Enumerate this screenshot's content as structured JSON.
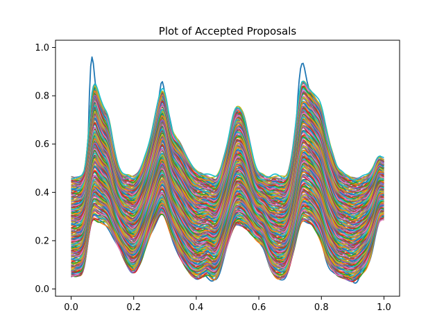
{
  "chart_data": {
    "type": "line",
    "title": "Plot of Accepted Proposals",
    "xlabel": "",
    "ylabel": "",
    "xlim": [
      -0.05,
      1.05
    ],
    "ylim": [
      -0.03,
      1.03
    ],
    "x_ticks": [
      0.0,
      0.2,
      0.4,
      0.6,
      0.8,
      1.0
    ],
    "x_tick_labels": [
      "0.0",
      "0.2",
      "0.4",
      "0.6",
      "0.8",
      "1.0"
    ],
    "y_ticks": [
      0.0,
      0.2,
      0.4,
      0.6,
      0.8,
      1.0
    ],
    "y_tick_labels": [
      "0.0",
      "0.2",
      "0.4",
      "0.6",
      "0.8",
      "1.0"
    ],
    "grid": false,
    "legend": "none",
    "x_range": [
      0.0,
      1.0
    ],
    "series_count_estimate": 200,
    "series_envelope": {
      "x": [
        0.0,
        0.02,
        0.04,
        0.05,
        0.06,
        0.07,
        0.08,
        0.1,
        0.12,
        0.14,
        0.16,
        0.18,
        0.2,
        0.22,
        0.25,
        0.28,
        0.29,
        0.3,
        0.32,
        0.35,
        0.38,
        0.4,
        0.42,
        0.44,
        0.45,
        0.47,
        0.5,
        0.52,
        0.53,
        0.55,
        0.57,
        0.59,
        0.6,
        0.62,
        0.63,
        0.65,
        0.67,
        0.69,
        0.7,
        0.72,
        0.73,
        0.74,
        0.75,
        0.77,
        0.8,
        0.82,
        0.85,
        0.88,
        0.9,
        0.92,
        0.95,
        0.97,
        0.98,
        1.0
      ],
      "upper": [
        0.46,
        0.46,
        0.47,
        0.53,
        0.75,
        0.88,
        0.85,
        0.75,
        0.72,
        0.56,
        0.47,
        0.47,
        0.46,
        0.49,
        0.6,
        0.8,
        0.84,
        0.82,
        0.65,
        0.6,
        0.52,
        0.49,
        0.48,
        0.47,
        0.46,
        0.46,
        0.6,
        0.74,
        0.76,
        0.74,
        0.62,
        0.49,
        0.48,
        0.47,
        0.46,
        0.47,
        0.46,
        0.46,
        0.5,
        0.7,
        0.84,
        0.88,
        0.85,
        0.82,
        0.76,
        0.63,
        0.5,
        0.47,
        0.46,
        0.46,
        0.47,
        0.51,
        0.56,
        0.53
      ],
      "lower": [
        0.05,
        0.05,
        0.06,
        0.15,
        0.27,
        0.3,
        0.28,
        0.28,
        0.26,
        0.2,
        0.15,
        0.09,
        0.06,
        0.1,
        0.22,
        0.3,
        0.32,
        0.3,
        0.22,
        0.12,
        0.06,
        0.04,
        0.05,
        0.07,
        0.04,
        0.05,
        0.18,
        0.26,
        0.27,
        0.26,
        0.24,
        0.21,
        0.2,
        0.17,
        0.1,
        0.05,
        0.04,
        0.05,
        0.1,
        0.2,
        0.27,
        0.29,
        0.28,
        0.27,
        0.2,
        0.1,
        0.05,
        0.04,
        0.03,
        0.05,
        0.1,
        0.2,
        0.28,
        0.29
      ]
    },
    "highlight_series": {
      "name": "",
      "color": "#1f77b4",
      "x": [
        0.0,
        0.02,
        0.04,
        0.05,
        0.06,
        0.065,
        0.07,
        0.08,
        0.1,
        0.12,
        0.14,
        0.16,
        0.18,
        0.2,
        0.22,
        0.25,
        0.28,
        0.29,
        0.3,
        0.32,
        0.35,
        0.38,
        0.4,
        0.42,
        0.44,
        0.45,
        0.46,
        0.47,
        0.5,
        0.52,
        0.53,
        0.55,
        0.57,
        0.59,
        0.6,
        0.62,
        0.63,
        0.65,
        0.67,
        0.69,
        0.7,
        0.72,
        0.73,
        0.74,
        0.745,
        0.75,
        0.77,
        0.8,
        0.82,
        0.85,
        0.88,
        0.9,
        0.91,
        0.92,
        0.95,
        0.97,
        0.98,
        1.0
      ],
      "y": [
        0.07,
        0.07,
        0.1,
        0.4,
        0.92,
        0.99,
        0.96,
        0.8,
        0.7,
        0.68,
        0.4,
        0.2,
        0.1,
        0.07,
        0.15,
        0.55,
        0.78,
        0.89,
        0.8,
        0.68,
        0.5,
        0.3,
        0.15,
        0.07,
        0.04,
        0.03,
        0.04,
        0.06,
        0.45,
        0.72,
        0.76,
        0.7,
        0.45,
        0.3,
        0.27,
        0.24,
        0.22,
        0.18,
        0.1,
        0.06,
        0.25,
        0.7,
        0.9,
        0.95,
        0.93,
        0.88,
        0.78,
        0.62,
        0.4,
        0.2,
        0.08,
        0.03,
        0.02,
        0.04,
        0.2,
        0.4,
        0.52,
        0.5
      ]
    },
    "palette": [
      "#1f77b4",
      "#ff7f0e",
      "#2ca02c",
      "#d62728",
      "#9467bd",
      "#8c564b",
      "#e377c2",
      "#7f7f7f",
      "#bcbd22",
      "#17becf"
    ]
  }
}
